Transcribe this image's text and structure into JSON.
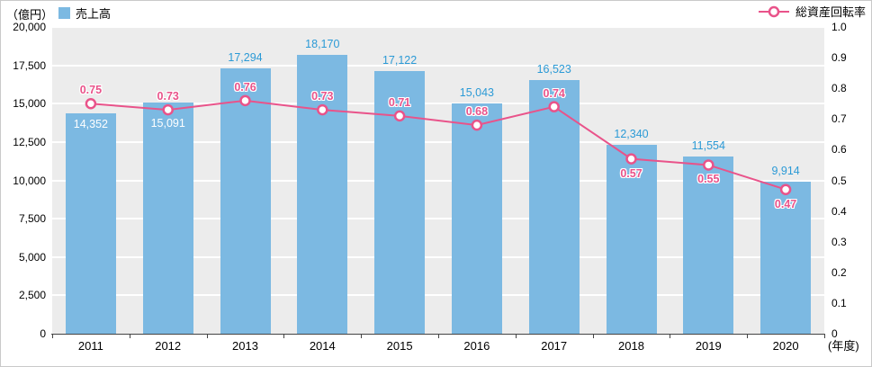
{
  "legend": {
    "axis_unit": "（億円）",
    "bar_label": "売上高",
    "line_label": "総資産回転率"
  },
  "chart_data": {
    "type": "bar+line",
    "title": "",
    "categories": [
      "2011",
      "2012",
      "2013",
      "2014",
      "2015",
      "2016",
      "2017",
      "2018",
      "2019",
      "2020"
    ],
    "x_axis_suffix": "(年度)",
    "plot_bg": "#ececec",
    "grid": "horizontal-white",
    "legend_position": "top",
    "bar_series": {
      "name": "売上高",
      "axis": "left",
      "unit": "億円",
      "values": [
        14352,
        15091,
        17294,
        18170,
        17122,
        15043,
        16523,
        12340,
        11554,
        9914
      ],
      "labels": [
        "14,352",
        "15,091",
        "17,294",
        "18,170",
        "17,122",
        "15,043",
        "16,523",
        "12,340",
        "11,554",
        "9,914"
      ],
      "label_inside": [
        true,
        true,
        false,
        false,
        false,
        false,
        false,
        false,
        false,
        false
      ],
      "color": "#7cb9e2",
      "label_color": "#2b9ad6"
    },
    "line_series": {
      "name": "総資産回転率",
      "axis": "right",
      "values": [
        0.75,
        0.73,
        0.76,
        0.73,
        0.71,
        0.68,
        0.74,
        0.57,
        0.55,
        0.47
      ],
      "labels": [
        "0.75",
        "0.73",
        "0.76",
        "0.73",
        "0.71",
        "0.68",
        "0.74",
        "0.57",
        "0.55",
        "0.47"
      ],
      "label_position": [
        "above",
        "above",
        "above",
        "above",
        "above",
        "above",
        "above",
        "below",
        "below",
        "below"
      ],
      "color": "#e9538a"
    },
    "left_axis": {
      "min": 0,
      "max": 20000,
      "step": 2500,
      "tick_labels": [
        "0",
        "2,500",
        "5,000",
        "7,500",
        "10,000",
        "12,500",
        "15,000",
        "17,500",
        "20,000"
      ]
    },
    "right_axis": {
      "min": 0,
      "max": 1,
      "step": 0.1,
      "tick_labels": [
        "0",
        "0.1",
        "0.2",
        "0.3",
        "0.4",
        "0.5",
        "0.6",
        "0.7",
        "0.8",
        "0.9",
        "1.0"
      ]
    }
  }
}
